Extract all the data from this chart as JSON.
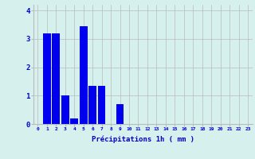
{
  "values": [
    0,
    3.2,
    3.2,
    1.0,
    0.2,
    3.45,
    1.35,
    1.35,
    0,
    0.7,
    0,
    0,
    0,
    0,
    0,
    0,
    0,
    0,
    0,
    0,
    0,
    0,
    0,
    0
  ],
  "bar_color": "#0000ee",
  "background_color": "#d6f0ee",
  "grid_color": "#bbbbbb",
  "xlabel": "Précipitations 1h ( mm )",
  "xlabel_color": "#0000cc",
  "tick_color": "#0000cc",
  "ylim": [
    0,
    4.2
  ],
  "yticks": [
    0,
    1,
    2,
    3,
    4
  ],
  "xlim": [
    -0.5,
    23.5
  ],
  "figsize": [
    3.2,
    2.0
  ],
  "dpi": 100
}
